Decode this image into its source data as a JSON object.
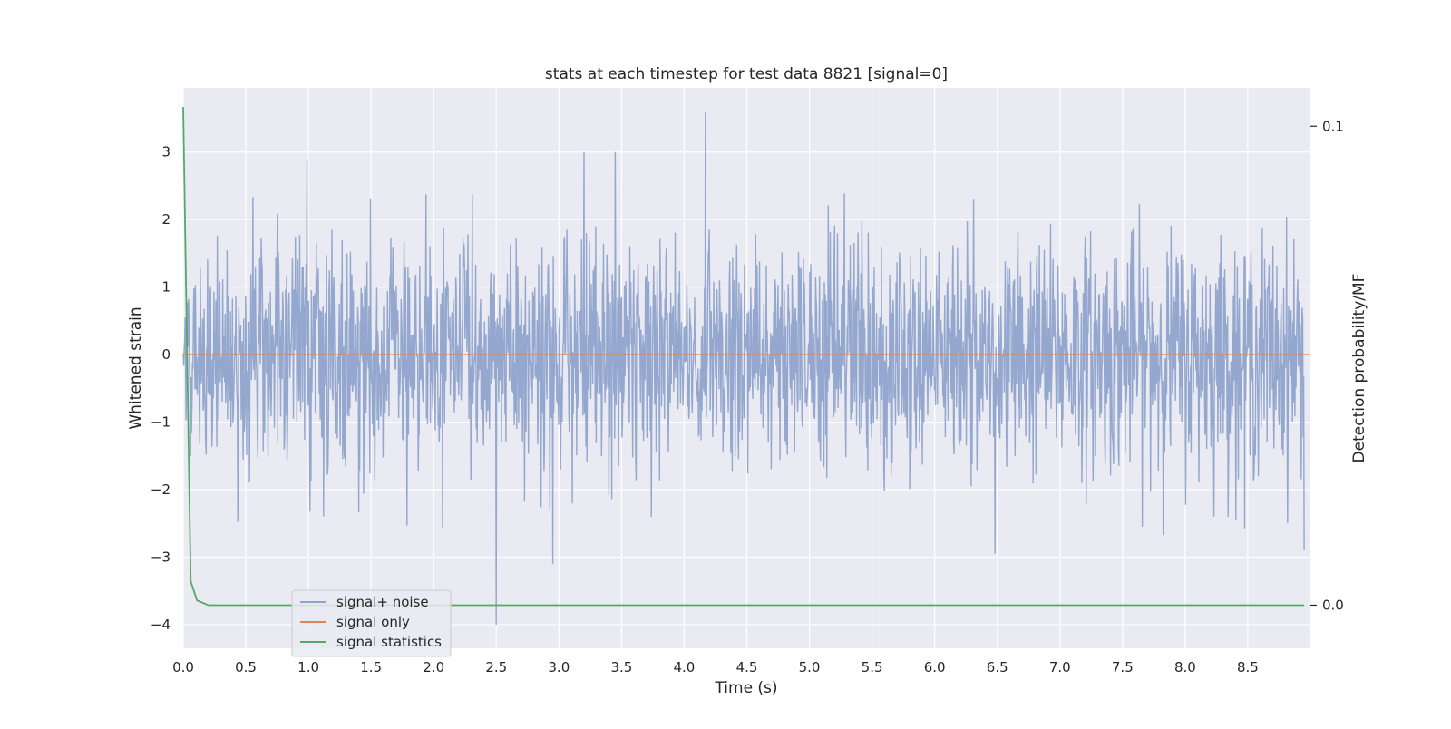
{
  "chart_data": {
    "type": "line",
    "title": "stats at each timestep for test data 8821 [signal=0]",
    "xlabel": "Time (s)",
    "ylabel": "Whitened strain",
    "y2label": "Detection probability/MF",
    "xlim": [
      0.0,
      9.0
    ],
    "ylim": [
      -4.35,
      3.95
    ],
    "y2lim": [
      -0.009,
      0.108
    ],
    "xticks": [
      0.0,
      0.5,
      1.0,
      1.5,
      2.0,
      2.5,
      3.0,
      3.5,
      4.0,
      4.5,
      5.0,
      5.5,
      6.0,
      6.5,
      7.0,
      7.5,
      8.0,
      8.5
    ],
    "xtick_labels": [
      "0.0",
      "0.5",
      "1.0",
      "1.5",
      "2.0",
      "2.5",
      "3.0",
      "3.5",
      "4.0",
      "4.5",
      "5.0",
      "5.5",
      "6.0",
      "6.5",
      "7.0",
      "7.5",
      "8.0",
      "8.5"
    ],
    "yticks": [
      -4,
      -3,
      -2,
      -1,
      0,
      1,
      2,
      3
    ],
    "ytick_labels": [
      "−4",
      "−3",
      "−2",
      "−1",
      "0",
      "1",
      "2",
      "3"
    ],
    "y2ticks": [
      0.0,
      0.1
    ],
    "y2tick_labels": [
      "0.0",
      "0.1"
    ],
    "grid": true,
    "legend_position": "lower-left",
    "series": [
      {
        "name": "signal+ noise",
        "color": "#8fa3cb",
        "kind": "noise",
        "sample_count": 2300,
        "envelope_max": 2.6,
        "envelope_min": -2.7,
        "peaks": [
          {
            "x": 0.99,
            "y": 2.9
          },
          {
            "x": 3.2,
            "y": 3.0
          },
          {
            "x": 3.45,
            "y": 3.0
          },
          {
            "x": 4.17,
            "y": 3.6
          },
          {
            "x": 2.5,
            "y": -4.0
          },
          {
            "x": 2.95,
            "y": -3.1
          },
          {
            "x": 6.48,
            "y": -2.95
          },
          {
            "x": 1.12,
            "y": -2.4
          },
          {
            "x": 8.95,
            "y": -2.9
          }
        ]
      },
      {
        "name": "signal only",
        "color": "#dd8452",
        "kind": "flat",
        "x": [
          0.0,
          9.0
        ],
        "y": [
          0.0,
          0.0
        ]
      },
      {
        "name": "signal statistics",
        "color": "#55a868",
        "kind": "stat",
        "axis": "right",
        "x": [
          0.0,
          0.06,
          0.11,
          0.2,
          8.95
        ],
        "y": [
          0.104,
          0.005,
          0.001,
          0.0,
          0.0
        ]
      }
    ]
  }
}
